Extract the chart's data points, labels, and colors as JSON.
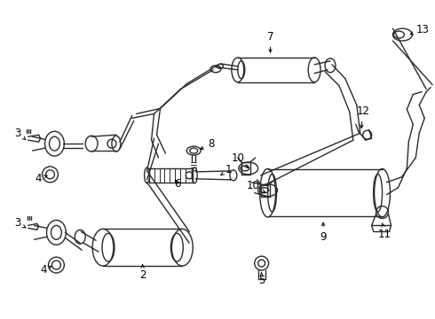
{
  "bg_color": "#ffffff",
  "line_color": "#2a2a2a",
  "figsize": [
    4.9,
    3.6
  ],
  "dpi": 100,
  "xlim": [
    0,
    490
  ],
  "ylim": [
    0,
    360
  ]
}
